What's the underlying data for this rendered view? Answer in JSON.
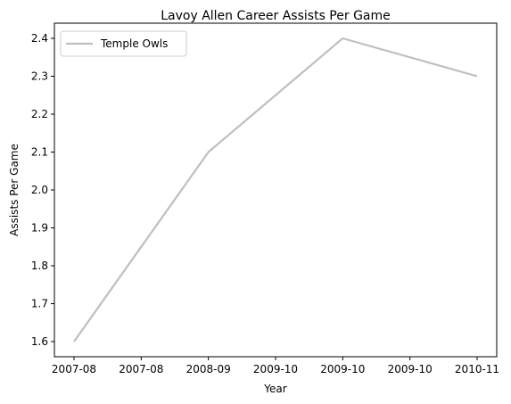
{
  "chart_data": {
    "type": "line",
    "title": "Lavoy Allen Career Assists Per Game",
    "xlabel": "Year",
    "ylabel": "Assists Per Game",
    "x_tick_labels": [
      "2007-08",
      "2007-08",
      "2008-09",
      "2009-10",
      "2009-10",
      "2009-10",
      "2010-11"
    ],
    "categories": [
      "2007-08",
      "2008-09",
      "2009-10",
      "2010-11"
    ],
    "series": [
      {
        "name": "Temple Owls",
        "color": "#bfbfbf",
        "values": [
          1.6,
          2.1,
          2.4,
          2.3
        ]
      }
    ],
    "ylim": [
      1.56,
      2.44
    ],
    "y_ticks": [
      1.6,
      1.7,
      1.8,
      1.9,
      2.0,
      2.1,
      2.2,
      2.3,
      2.4
    ],
    "grid": false,
    "legend_position": "top-left"
  }
}
